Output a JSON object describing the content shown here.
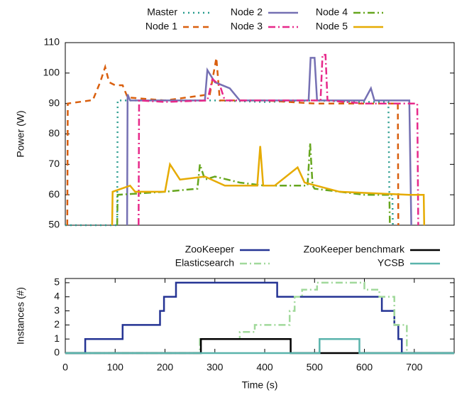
{
  "chart_data": [
    {
      "type": "line",
      "ylabel": "Power (W)",
      "xlim": [
        0,
        780
      ],
      "ylim": [
        50,
        110
      ],
      "yticks": [
        50,
        60,
        70,
        80,
        90,
        100,
        110
      ],
      "series": [
        {
          "name": "Master",
          "color": "#2a9d8f",
          "dash": "dotted",
          "x": [
            0,
            104,
            105,
            200,
            300,
            400,
            500,
            600,
            648,
            650,
            656,
            657
          ],
          "values": [
            50,
            50,
            91,
            91,
            91,
            90.5,
            91,
            90.5,
            90.5,
            60,
            60,
            50
          ]
        },
        {
          "name": "Node 1",
          "color": "#d95f0e",
          "dash": "dashed",
          "x": [
            4,
            5,
            50,
            55,
            70,
            80,
            88,
            100,
            115,
            125,
            200,
            290,
            303,
            310,
            400,
            500,
            600,
            667,
            668
          ],
          "values": [
            50,
            90,
            91,
            91,
            97,
            102,
            97,
            96,
            96,
            92,
            91,
            93,
            105,
            91,
            91,
            90,
            90,
            90,
            50
          ]
        },
        {
          "name": "Node 2",
          "color": "#7570b3",
          "dash": "solid",
          "x": [
            124,
            125,
            130,
            200,
            280,
            285,
            300,
            330,
            350,
            450,
            488,
            492,
            500,
            505,
            600,
            613,
            620,
            690,
            694
          ],
          "values": [
            50,
            93,
            91,
            91,
            91,
            101,
            97,
            95,
            91,
            91,
            91,
            105,
            105,
            91,
            91,
            95,
            91,
            91,
            50
          ]
        },
        {
          "name": "Node 3",
          "color": "#e7298a",
          "dash": "dashdot",
          "x": [
            147,
            148,
            200,
            285,
            295,
            310,
            320,
            450,
            512,
            516,
            522,
            526,
            600,
            706,
            708
          ],
          "values": [
            50,
            91,
            90.5,
            91,
            98,
            96,
            91,
            91,
            91,
            106,
            106,
            91,
            90,
            90,
            50
          ]
        },
        {
          "name": "Node 4",
          "color": "#66a61e",
          "dash": "dashdot",
          "x": [
            104,
            105,
            200,
            265,
            270,
            280,
            300,
            350,
            400,
            486,
            491,
            496,
            500,
            600,
            650,
            651
          ],
          "values": [
            50,
            60,
            61,
            62,
            70,
            65,
            66,
            64,
            63,
            63,
            77,
            63,
            62,
            60,
            60,
            50
          ]
        },
        {
          "name": "Node 5",
          "color": "#e6ab02",
          "dash": "solid",
          "x": [
            94,
            95,
            130,
            140,
            200,
            210,
            230,
            280,
            320,
            385,
            391,
            397,
            420,
            466,
            480,
            550,
            690,
            719,
            720
          ],
          "values": [
            50,
            61,
            63,
            61,
            61,
            70,
            65,
            66,
            63,
            63,
            76,
            63,
            63,
            69,
            64,
            61,
            60,
            60,
            50
          ]
        }
      ]
    },
    {
      "type": "line",
      "ylabel": "Instances (#)",
      "xlabel": "Time (s)",
      "xlim": [
        0,
        780
      ],
      "ylim": [
        0,
        5.3
      ],
      "xticks": [
        0,
        100,
        200,
        300,
        400,
        500,
        600,
        700
      ],
      "yticks": [
        0,
        1,
        2,
        3,
        4,
        5
      ],
      "series": [
        {
          "name": "ZooKeeper",
          "color": "#253494",
          "dash": "solid",
          "x": [
            0,
            40,
            40,
            115,
            115,
            190,
            190,
            198,
            198,
            222,
            222,
            425,
            425,
            635,
            635,
            660,
            660,
            668,
            668,
            675,
            675,
            683,
            683,
            780
          ],
          "values": [
            0,
            0,
            1,
            1,
            2,
            2,
            3,
            3,
            4,
            4,
            5,
            5,
            4,
            4,
            3,
            3,
            2,
            2,
            1,
            1,
            0,
            0,
            0,
            0
          ]
        },
        {
          "name": "Elasticsearch",
          "color": "#a1d99b",
          "dash": "dashdot",
          "x": [
            0,
            270,
            270,
            350,
            350,
            380,
            380,
            450,
            450,
            460,
            460,
            475,
            475,
            505,
            505,
            600,
            600,
            630,
            630,
            660,
            660,
            685,
            685,
            780
          ],
          "values": [
            0,
            0,
            1,
            1,
            1.5,
            1.5,
            2,
            2,
            3,
            3,
            4,
            4,
            4.5,
            4.5,
            5,
            5,
            4.5,
            4.5,
            4,
            4,
            2,
            2,
            0,
            0
          ]
        },
        {
          "name": "ZooKeeper benchmark",
          "color": "#000000",
          "dash": "solid",
          "x": [
            0,
            272,
            272,
            452,
            452,
            780
          ],
          "values": [
            0,
            0,
            1,
            1,
            0,
            0
          ]
        },
        {
          "name": "YCSB",
          "color": "#5ab4ac",
          "dash": "solid",
          "x": [
            0,
            510,
            510,
            590,
            590,
            780
          ],
          "values": [
            0,
            0,
            1,
            1,
            0,
            0
          ]
        }
      ]
    }
  ]
}
